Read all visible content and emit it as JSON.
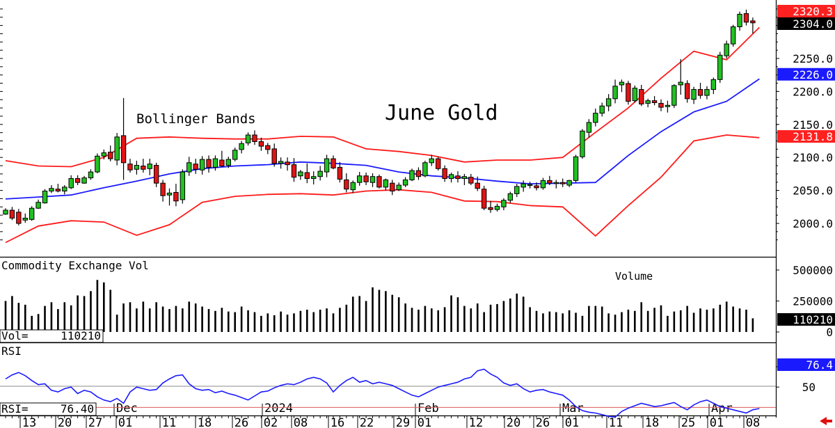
{
  "chart_data": {
    "type": "candlestick",
    "title": "June Gold",
    "instrument": "June Gold",
    "overlay_label": "Bollinger Bands",
    "x_tick_labels": [
      "13",
      "20",
      "27",
      "01",
      "11",
      "18",
      "26",
      "02",
      "08",
      "16",
      "22",
      "29",
      "01",
      "12",
      "20",
      "26",
      "01",
      "11",
      "18",
      "25",
      "01",
      "08"
    ],
    "month_labels": [
      "Dec",
      "2024",
      "Feb",
      "Mar",
      "Apr"
    ],
    "price_panel": {
      "yticks": [
        2000,
        2050,
        2100,
        2150,
        2200,
        2250
      ],
      "ytick_labels": [
        "2000.0",
        "2050.0",
        "2100.0",
        "2150.0",
        "2200.0",
        "2250.0"
      ],
      "ylim": [
        1960,
        2335
      ],
      "badges": [
        {
          "label": "2320.3",
          "value": 2320.3,
          "bg": "#ff2020",
          "fg": "#ffffff"
        },
        {
          "label": "2304.0",
          "value": 2304.0,
          "bg": "#000000",
          "fg": "#ffffff"
        },
        {
          "label": "2226.0",
          "value": 2226.0,
          "bg": "#1a1aff",
          "fg": "#ffffff"
        },
        {
          "label": "2131.8",
          "value": 2131.8,
          "bg": "#ff2020",
          "fg": "#ffffff"
        }
      ],
      "candles": [
        [
          2014,
          2023,
          2013,
          2020
        ],
        [
          2020,
          2025,
          2005,
          2008
        ],
        [
          2017,
          2022,
          1997,
          2000
        ],
        [
          2005,
          2015,
          2001,
          2008
        ],
        [
          2006,
          2026,
          2004,
          2023
        ],
        [
          2023,
          2036,
          2022,
          2032
        ],
        [
          2031,
          2052,
          2030,
          2049
        ],
        [
          2049,
          2058,
          2046,
          2053
        ],
        [
          2052,
          2060,
          2047,
          2049
        ],
        [
          2049,
          2058,
          2044,
          2055
        ],
        [
          2054,
          2073,
          2052,
          2068
        ],
        [
          2068,
          2073,
          2058,
          2062
        ],
        [
          2061,
          2072,
          2060,
          2069
        ],
        [
          2069,
          2082,
          2066,
          2078
        ],
        [
          2078,
          2106,
          2076,
          2102
        ],
        [
          2102,
          2112,
          2097,
          2107
        ],
        [
          2108,
          2118,
          2094,
          2098
        ],
        [
          2096,
          2137,
          2088,
          2131
        ],
        [
          2133,
          2190,
          2066,
          2092
        ],
        [
          2090,
          2098,
          2077,
          2081
        ],
        [
          2082,
          2095,
          2074,
          2088
        ],
        [
          2087,
          2098,
          2077,
          2082
        ],
        [
          2083,
          2098,
          2073,
          2090
        ],
        [
          2088,
          2092,
          2055,
          2061
        ],
        [
          2061,
          2066,
          2033,
          2042
        ],
        [
          2043,
          2053,
          2027,
          2046
        ],
        [
          2047,
          2060,
          2026,
          2034
        ],
        [
          2036,
          2082,
          2030,
          2078
        ],
        [
          2078,
          2101,
          2072,
          2092
        ],
        [
          2090,
          2098,
          2075,
          2082
        ],
        [
          2081,
          2102,
          2074,
          2097
        ],
        [
          2097,
          2103,
          2077,
          2085
        ],
        [
          2085,
          2103,
          2080,
          2098
        ],
        [
          2096,
          2110,
          2086,
          2087
        ],
        [
          2088,
          2101,
          2084,
          2097
        ],
        [
          2097,
          2115,
          2094,
          2111
        ],
        [
          2112,
          2125,
          2106,
          2121
        ],
        [
          2122,
          2138,
          2118,
          2134
        ],
        [
          2134,
          2141,
          2119,
          2124
        ],
        [
          2124,
          2130,
          2110,
          2117
        ],
        [
          2118,
          2122,
          2105,
          2112
        ],
        [
          2113,
          2121,
          2086,
          2091
        ],
        [
          2091,
          2100,
          2083,
          2094
        ],
        [
          2093,
          2100,
          2080,
          2089
        ],
        [
          2089,
          2099,
          2063,
          2070
        ],
        [
          2072,
          2081,
          2066,
          2078
        ],
        [
          2077,
          2091,
          2061,
          2068
        ],
        [
          2068,
          2079,
          2059,
          2071
        ],
        [
          2071,
          2087,
          2065,
          2079
        ],
        [
          2078,
          2104,
          2070,
          2098
        ],
        [
          2098,
          2103,
          2082,
          2084
        ],
        [
          2085,
          2093,
          2062,
          2067
        ],
        [
          2066,
          2076,
          2047,
          2052
        ],
        [
          2051,
          2065,
          2046,
          2062
        ],
        [
          2062,
          2078,
          2057,
          2072
        ],
        [
          2072,
          2077,
          2058,
          2063
        ],
        [
          2062,
          2076,
          2055,
          2071
        ],
        [
          2071,
          2074,
          2053,
          2055
        ],
        [
          2055,
          2068,
          2050,
          2066
        ],
        [
          2061,
          2066,
          2043,
          2049
        ],
        [
          2051,
          2062,
          2049,
          2058
        ],
        [
          2058,
          2070,
          2055,
          2066
        ],
        [
          2066,
          2083,
          2064,
          2080
        ],
        [
          2080,
          2085,
          2066,
          2071
        ],
        [
          2072,
          2095,
          2070,
          2092
        ],
        [
          2092,
          2104,
          2087,
          2098
        ],
        [
          2098,
          2101,
          2080,
          2083
        ],
        [
          2083,
          2088,
          2063,
          2068
        ],
        [
          2068,
          2077,
          2062,
          2074
        ],
        [
          2072,
          2079,
          2062,
          2068
        ],
        [
          2068,
          2075,
          2058,
          2071
        ],
        [
          2070,
          2075,
          2058,
          2061
        ],
        [
          2061,
          2071,
          2049,
          2053
        ],
        [
          2052,
          2057,
          2020,
          2023
        ],
        [
          2024,
          2034,
          2016,
          2021
        ],
        [
          2021,
          2030,
          2018,
          2026
        ],
        [
          2025,
          2038,
          2020,
          2035
        ],
        [
          2035,
          2048,
          2031,
          2045
        ],
        [
          2045,
          2060,
          2040,
          2056
        ],
        [
          2055,
          2065,
          2048,
          2060
        ],
        [
          2058,
          2063,
          2053,
          2059
        ],
        [
          2057,
          2062,
          2050,
          2054
        ],
        [
          2054,
          2069,
          2051,
          2065
        ],
        [
          2065,
          2072,
          2058,
          2061
        ],
        [
          2061,
          2066,
          2053,
          2062
        ],
        [
          2062,
          2068,
          2055,
          2060
        ],
        [
          2058,
          2066,
          2055,
          2065
        ],
        [
          2065,
          2104,
          2062,
          2101
        ],
        [
          2101,
          2143,
          2098,
          2140
        ],
        [
          2138,
          2158,
          2130,
          2153
        ],
        [
          2153,
          2174,
          2147,
          2167
        ],
        [
          2167,
          2183,
          2162,
          2178
        ],
        [
          2178,
          2196,
          2170,
          2189
        ],
        [
          2189,
          2218,
          2182,
          2208
        ],
        [
          2210,
          2218,
          2199,
          2214
        ],
        [
          2212,
          2216,
          2180,
          2185
        ],
        [
          2186,
          2209,
          2183,
          2205
        ],
        [
          2203,
          2210,
          2178,
          2181
        ],
        [
          2182,
          2189,
          2176,
          2186
        ],
        [
          2186,
          2193,
          2179,
          2183
        ],
        [
          2182,
          2188,
          2170,
          2176
        ],
        [
          2177,
          2186,
          2168,
          2179
        ],
        [
          2179,
          2211,
          2175,
          2209
        ],
        [
          2210,
          2249,
          2195,
          2214
        ],
        [
          2212,
          2217,
          2183,
          2189
        ],
        [
          2188,
          2207,
          2181,
          2203
        ],
        [
          2203,
          2213,
          2189,
          2194
        ],
        [
          2194,
          2208,
          2188,
          2203
        ],
        [
          2203,
          2221,
          2196,
          2218
        ],
        [
          2218,
          2260,
          2213,
          2255
        ],
        [
          2254,
          2277,
          2250,
          2272
        ],
        [
          2272,
          2301,
          2268,
          2298
        ],
        [
          2298,
          2321,
          2292,
          2317
        ],
        [
          2318,
          2324,
          2300,
          2305
        ],
        [
          2307,
          2312,
          2288,
          2304
        ]
      ],
      "bb_upper_days": [
        0,
        5,
        10,
        15,
        20,
        25,
        30,
        35,
        40,
        45,
        50,
        55,
        60,
        65,
        70,
        75,
        80,
        85,
        90,
        95,
        100,
        105,
        110,
        115
      ],
      "bb_upper": [
        2095,
        2087,
        2086,
        2100,
        2129,
        2131,
        2129,
        2128,
        2128,
        2132,
        2131,
        2113,
        2109,
        2103,
        2093,
        2096,
        2096,
        2100,
        2138,
        2175,
        2220,
        2261,
        2248,
        2297
      ],
      "bb_mid": [
        2037,
        2040,
        2043,
        2054,
        2064,
        2075,
        2083,
        2087,
        2089,
        2093,
        2091,
        2088,
        2078,
        2072,
        2069,
        2064,
        2060,
        2061,
        2062,
        2103,
        2139,
        2169,
        2185,
        2219
      ],
      "bb_lower": [
        1971,
        1996,
        2004,
        2002,
        1982,
        1998,
        2032,
        2041,
        2044,
        2045,
        2043,
        2049,
        2051,
        2047,
        2034,
        2033,
        2027,
        2025,
        1981,
        2027,
        2070,
        2125,
        2134,
        2130
      ],
      "bollinger": {
        "upper_color": "#ff1a1a",
        "middle_color": "#1a1aff",
        "lower_color": "#ff1a1a"
      }
    },
    "volume_panel": {
      "label": "Commodity Exchange Vol",
      "annotation": "Volume",
      "readout": "Vol=",
      "readout_value": "110210",
      "badge": "110210",
      "yticks": [
        0,
        250000,
        500000
      ],
      "ytick_labels": [
        "0",
        "250000",
        "500000"
      ],
      "ymax": 560000,
      "values": [
        250000,
        290000,
        235000,
        220000,
        130000,
        145000,
        210000,
        240000,
        185000,
        240000,
        215000,
        295000,
        290000,
        330000,
        420000,
        400000,
        340000,
        140000,
        230000,
        240000,
        190000,
        245000,
        190000,
        240000,
        205000,
        185000,
        210000,
        190000,
        245000,
        230000,
        205000,
        185000,
        170000,
        195000,
        165000,
        160000,
        205000,
        175000,
        160000,
        130000,
        150000,
        135000,
        165000,
        140000,
        150000,
        170000,
        180000,
        160000,
        180000,
        190000,
        150000,
        195000,
        220000,
        285000,
        290000,
        250000,
        360000,
        340000,
        330000,
        300000,
        280000,
        230000,
        195000,
        180000,
        210000,
        190000,
        175000,
        200000,
        295000,
        280000,
        210000,
        190000,
        230000,
        160000,
        220000,
        225000,
        250000,
        270000,
        310000,
        285000,
        200000,
        170000,
        150000,
        165000,
        160000,
        150000,
        175000,
        155000,
        130000,
        210000,
        210000,
        205000,
        150000,
        140000,
        160000,
        180000,
        170000,
        240000,
        170000,
        195000,
        215000,
        130000,
        165000,
        175000,
        210000,
        155000,
        190000,
        180000,
        190000,
        220000,
        245000,
        205000,
        190000,
        180000,
        110210
      ]
    },
    "rsi_panel": {
      "label": "RSI",
      "readout": "RSI=",
      "readout_value": "76.40",
      "badge": "76.4",
      "yticks": [
        25,
        50
      ],
      "ytick_labels": [
        "25",
        "50"
      ],
      "ylim": [
        20,
        92
      ],
      "overbought": 75,
      "midline": 49,
      "values": [
        40,
        35,
        32,
        36,
        42,
        47,
        46,
        54,
        56,
        52,
        50,
        58,
        54,
        56,
        62,
        66,
        68,
        64,
        70,
        56,
        50,
        52,
        54,
        53,
        45,
        40,
        36,
        35,
        46,
        52,
        54,
        53,
        57,
        55,
        58,
        60,
        63,
        66,
        61,
        56,
        55,
        51,
        48,
        46,
        47,
        44,
        40,
        38,
        40,
        45,
        56,
        48,
        42,
        38,
        44,
        42,
        46,
        44,
        46,
        48,
        52,
        56,
        60,
        62,
        58,
        54,
        50,
        48,
        46,
        44,
        40,
        38,
        30,
        28,
        34,
        38,
        45,
        48,
        46,
        52,
        56,
        54,
        53,
        56,
        58,
        60,
        66,
        74,
        79,
        81,
        82,
        84,
        86,
        87,
        80,
        76,
        73,
        70,
        72,
        74,
        73,
        71,
        69,
        74,
        78,
        72,
        68,
        66,
        70,
        74,
        76,
        78,
        80,
        82,
        78,
        76.4
      ]
    }
  }
}
